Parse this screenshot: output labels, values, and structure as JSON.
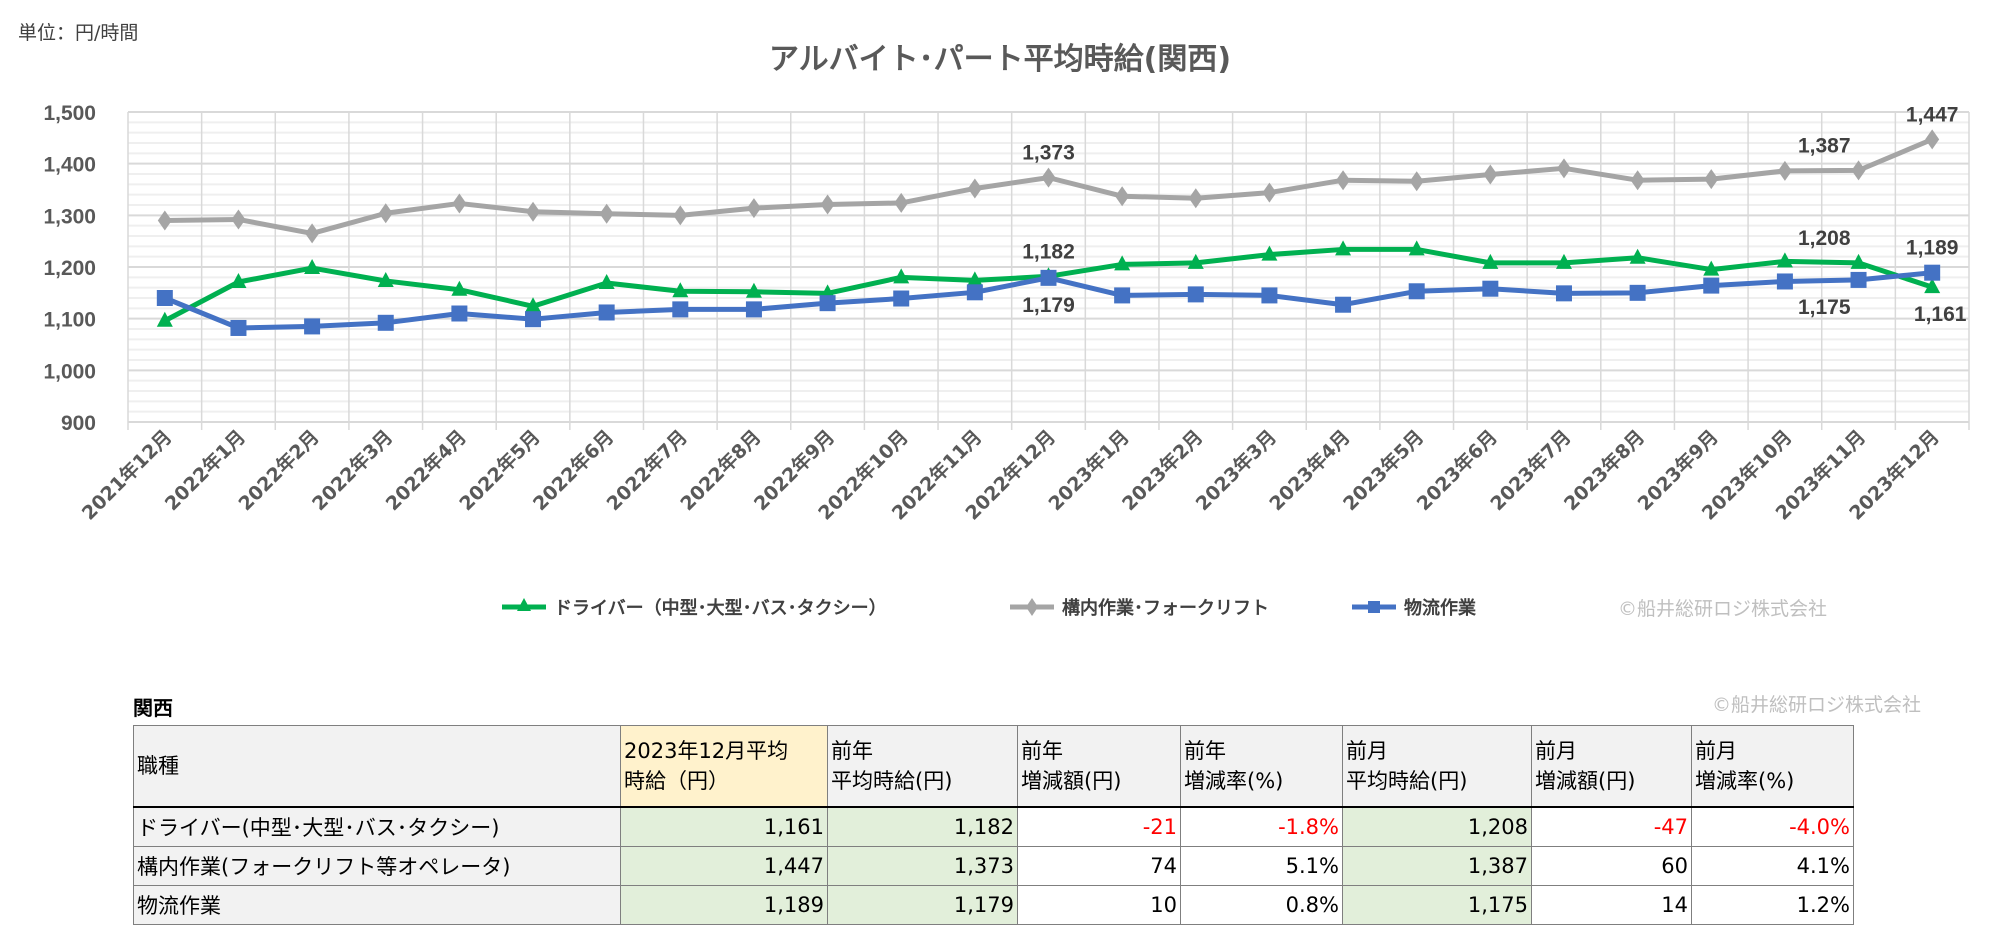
{
  "unit_label": "単位：円/時間",
  "copyright": "©船井総研ロジ株式会社",
  "chart_data": {
    "type": "line",
    "title": "アルバイト･パート平均時給(関西)",
    "categories": [
      "2021年12月",
      "2022年1月",
      "2022年2月",
      "2022年3月",
      "2022年4月",
      "2022年5月",
      "2022年6月",
      "2022年7月",
      "2022年8月",
      "2022年9月",
      "2022年10月",
      "2022年11月",
      "2022年12月",
      "2023年1月",
      "2023年2月",
      "2023年3月",
      "2023年4月",
      "2023年5月",
      "2023年6月",
      "2023年7月",
      "2023年8月",
      "2023年9月",
      "2023年10月",
      "2023年11月",
      "2023年12月"
    ],
    "ylim": [
      900,
      1500
    ],
    "yticks": [
      900,
      1000,
      1100,
      1200,
      1300,
      1400,
      1500
    ],
    "ytick_labels": [
      "900",
      "1,000",
      "1,100",
      "1,200",
      "1,300",
      "1,400",
      "1,500"
    ],
    "grid": true,
    "legend_position": "bottom",
    "series": [
      {
        "name": "ドライバー（中型･大型･バス･タクシー）",
        "color": "#00b050",
        "marker": "triangle",
        "values": [
          1096,
          1171,
          1198,
          1173,
          1156,
          1124,
          1169,
          1153,
          1152,
          1149,
          1180,
          1174,
          1182,
          1205,
          1208,
          1224,
          1234,
          1234,
          1208,
          1208,
          1218,
          1195,
          1211,
          1208,
          1161
        ]
      },
      {
        "name": "構内作業･フォークリフト",
        "color": "#a5a5a5",
        "marker": "diamond",
        "values": [
          1290,
          1292,
          1265,
          1304,
          1323,
          1307,
          1303,
          1300,
          1314,
          1321,
          1324,
          1352,
          1373,
          1337,
          1333,
          1344,
          1368,
          1366,
          1379,
          1391,
          1368,
          1370,
          1386,
          1387,
          1447
        ]
      },
      {
        "name": "物流作業",
        "color": "#4472c4",
        "marker": "square",
        "values": [
          1140,
          1082,
          1085,
          1092,
          1110,
          1099,
          1112,
          1118,
          1118,
          1130,
          1139,
          1151,
          1179,
          1145,
          1147,
          1145,
          1127,
          1153,
          1158,
          1149,
          1150,
          1164,
          1172,
          1175,
          1189
        ]
      }
    ],
    "data_labels": [
      {
        "series": 1,
        "index": 12,
        "text": "1,373",
        "position": "above"
      },
      {
        "series": 0,
        "index": 12,
        "text": "1,182",
        "position": "above"
      },
      {
        "series": 2,
        "index": 12,
        "text": "1,179",
        "position": "below"
      },
      {
        "series": 1,
        "index": 23,
        "text": "1,387",
        "position": "above-left"
      },
      {
        "series": 0,
        "index": 23,
        "text": "1,208",
        "position": "above-left"
      },
      {
        "series": 2,
        "index": 23,
        "text": "1,175",
        "position": "below-left"
      },
      {
        "series": 1,
        "index": 24,
        "text": "1,447",
        "position": "above"
      },
      {
        "series": 2,
        "index": 24,
        "text": "1,189",
        "position": "above"
      },
      {
        "series": 0,
        "index": 24,
        "text": "1,161",
        "position": "below"
      }
    ]
  },
  "table": {
    "region": "関西",
    "headers": [
      [
        "職種"
      ],
      [
        "2023年12月平均",
        "時給（円）"
      ],
      [
        "前年",
        "平均時給(円)"
      ],
      [
        "前年",
        "増減額(円)"
      ],
      [
        "前年",
        "増減率(%)"
      ],
      [
        "前月",
        "平均時給(円)"
      ],
      [
        "前月",
        "増減額(円)"
      ],
      [
        "前月",
        "増減率(%)"
      ]
    ],
    "rows": [
      {
        "name": "ドライバー(中型･大型･バス･タクシー)",
        "current": "1,161",
        "prev_year": "1,182",
        "yoy_diff": "-21",
        "yoy_rate": "-1.8%",
        "prev_month": "1,208",
        "mom_diff": "-47",
        "mom_rate": "-4.0%"
      },
      {
        "name": "構内作業(フォークリフト等オペレータ)",
        "current": "1,447",
        "prev_year": "1,373",
        "yoy_diff": "74",
        "yoy_rate": "5.1%",
        "prev_month": "1,387",
        "mom_diff": "60",
        "mom_rate": "4.1%"
      },
      {
        "name": "物流作業",
        "current": "1,189",
        "prev_year": "1,179",
        "yoy_diff": "10",
        "yoy_rate": "0.8%",
        "prev_month": "1,175",
        "mom_diff": "14",
        "mom_rate": "1.2%"
      }
    ],
    "colors": {
      "negative": "#ff0000",
      "highlight_current": "#fff2cc",
      "highlight_values": "#e2efda"
    }
  }
}
